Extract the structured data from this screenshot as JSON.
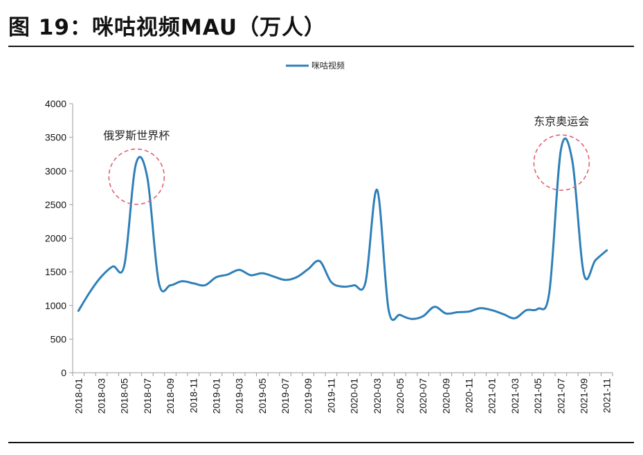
{
  "header": {
    "title": "图 19：咪咕视频MAU（万人）"
  },
  "colors": {
    "line": "#2e7fb8",
    "annotation": "#e06070",
    "axis": "#999999"
  },
  "chart_data": {
    "type": "line",
    "title": "图 19：咪咕视频MAU（万人）",
    "xlabel": "",
    "ylabel": "",
    "ylim": [
      0,
      4000
    ],
    "yticks": [
      0,
      500,
      1000,
      1500,
      2000,
      2500,
      3000,
      3500,
      4000
    ],
    "legend": {
      "position": "top-center",
      "entries": [
        "咪咕视频"
      ]
    },
    "x": [
      "2018-01",
      "2018-02",
      "2018-03",
      "2018-04",
      "2018-05",
      "2018-06",
      "2018-07",
      "2018-08",
      "2018-09",
      "2018-10",
      "2018-11",
      "2018-12",
      "2019-01",
      "2019-02",
      "2019-03",
      "2019-04",
      "2019-05",
      "2019-06",
      "2019-07",
      "2019-08",
      "2019-09",
      "2019-10",
      "2019-11",
      "2019-12",
      "2020-01",
      "2020-02",
      "2020-03",
      "2020-04",
      "2020-05",
      "2020-06",
      "2020-07",
      "2020-08",
      "2020-09",
      "2020-10",
      "2020-11",
      "2020-12",
      "2021-01",
      "2021-02",
      "2021-03",
      "2021-04",
      "2021-05",
      "2021-06",
      "2021-07",
      "2021-08",
      "2021-09",
      "2021-10",
      "2021-11"
    ],
    "xtick_labels": [
      "2018-01",
      "2018-03",
      "2018-05",
      "2018-07",
      "2018-09",
      "2018-11",
      "2019-01",
      "2019-03",
      "2019-05",
      "2019-07",
      "2019-09",
      "2019-11",
      "2020-01",
      "2020-03",
      "2020-05",
      "2020-07",
      "2020-09",
      "2020-11",
      "2021-01",
      "2021-03",
      "2021-05",
      "2021-07",
      "2021-09",
      "2021-11"
    ],
    "series": [
      {
        "name": "咪咕视频",
        "values": [
          920,
          1200,
          1430,
          1580,
          1600,
          3100,
          2900,
          1340,
          1300,
          1360,
          1330,
          1300,
          1420,
          1460,
          1530,
          1450,
          1480,
          1430,
          1380,
          1420,
          1540,
          1660,
          1350,
          1280,
          1300,
          1350,
          2720,
          940,
          860,
          800,
          840,
          980,
          880,
          900,
          910,
          960,
          930,
          870,
          810,
          930,
          950,
          1200,
          3310,
          3150,
          1470,
          1670,
          1820
        ]
      }
    ],
    "annotations": [
      {
        "text": "俄罗斯世界杯",
        "at": "2018-06"
      },
      {
        "text": "东京奥运会",
        "at": "2021-07"
      }
    ]
  }
}
